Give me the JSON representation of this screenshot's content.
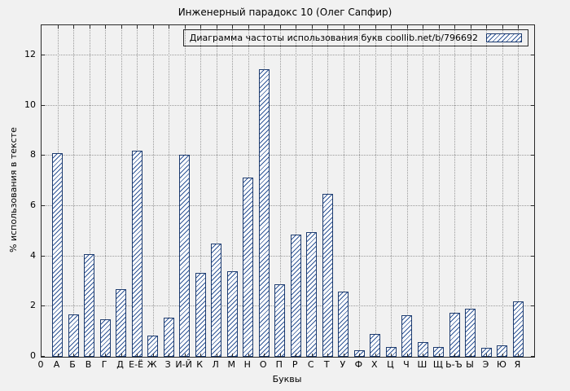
{
  "chart_data": {
    "type": "bar",
    "title": "Инженерный парадокс 10 (Олег Сапфир)",
    "legend": "Диаграмма частоты использования букв coollib.net/b/796692",
    "xlabel": "Буквы",
    "ylabel": "% использования в тексте",
    "origin_label": "0",
    "categories": [
      "А",
      "Б",
      "В",
      "Г",
      "Д",
      "Е-Ё",
      "Ж",
      "З",
      "И-Й",
      "К",
      "Л",
      "М",
      "Н",
      "О",
      "П",
      "Р",
      "С",
      "Т",
      "У",
      "Ф",
      "Х",
      "Ц",
      "Ч",
      "Ш",
      "Щ",
      "Ь-Ъ",
      "Ы",
      "Э",
      "Ю",
      "Я"
    ],
    "values": [
      8.1,
      1.7,
      4.1,
      1.5,
      2.7,
      8.2,
      0.85,
      1.55,
      8.05,
      3.35,
      4.5,
      3.4,
      7.15,
      11.45,
      2.9,
      4.85,
      4.95,
      6.5,
      2.6,
      0.25,
      0.9,
      0.4,
      1.65,
      0.6,
      0.4,
      1.75,
      1.9,
      0.35,
      0.45,
      2.2
    ],
    "ylim": [
      0,
      13.2
    ],
    "yticks": [
      0,
      2,
      4,
      6,
      8,
      10,
      12
    ],
    "grid": true,
    "legend_position": "top-right",
    "hatch_color": "#2f5596",
    "bar_border_color": "#1d3b6e",
    "bar_fill": "#ffffff",
    "background": "#f1f1f1"
  }
}
